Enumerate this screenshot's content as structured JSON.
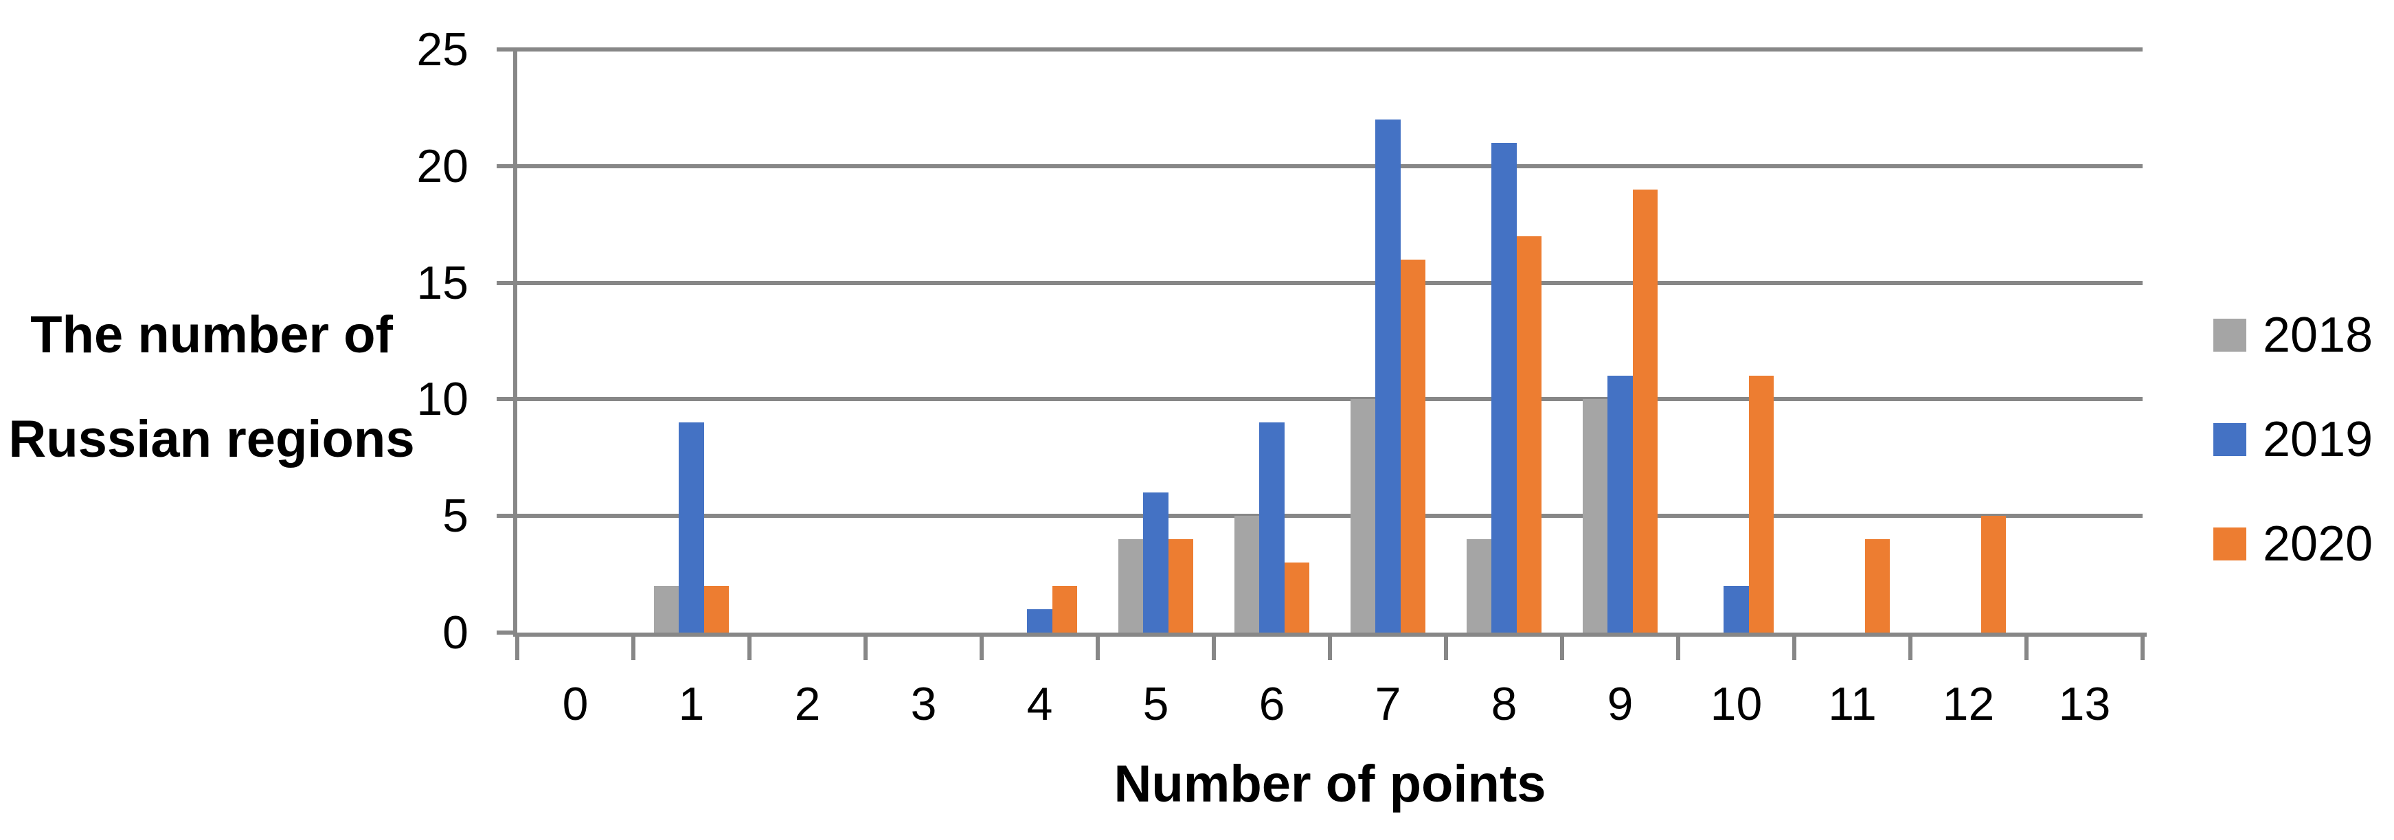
{
  "chart_data": {
    "type": "bar",
    "title": "",
    "xlabel": "Number of points",
    "ylabel": "The number of Russian regions",
    "ylabel_lines": {
      "line1": "The number of",
      "line2": "Russian regions"
    },
    "categories": [
      "0",
      "1",
      "2",
      "3",
      "4",
      "5",
      "6",
      "7",
      "8",
      "9",
      "10",
      "11",
      "12",
      "13"
    ],
    "series": [
      {
        "name": "2018",
        "color": "#A5A5A5",
        "values": [
          0,
          2,
          0,
          0,
          0,
          4,
          5,
          10,
          4,
          10,
          0,
          0,
          0,
          0
        ]
      },
      {
        "name": "2019",
        "color": "#4472C4",
        "values": [
          0,
          9,
          0,
          0,
          1,
          6,
          9,
          22,
          21,
          11,
          2,
          0,
          0,
          0
        ]
      },
      {
        "name": "2020",
        "color": "#ED7D31",
        "values": [
          0,
          2,
          0,
          0,
          2,
          4,
          3,
          16,
          17,
          19,
          11,
          4,
          5,
          0
        ]
      }
    ],
    "ylim": [
      0,
      25
    ],
    "yticks": [
      0,
      5,
      10,
      15,
      20,
      25
    ],
    "grid": "horizontal",
    "legend_position": "right",
    "axis_color": "#878787",
    "text_color": "#000000",
    "background": "#FFFFFF"
  }
}
